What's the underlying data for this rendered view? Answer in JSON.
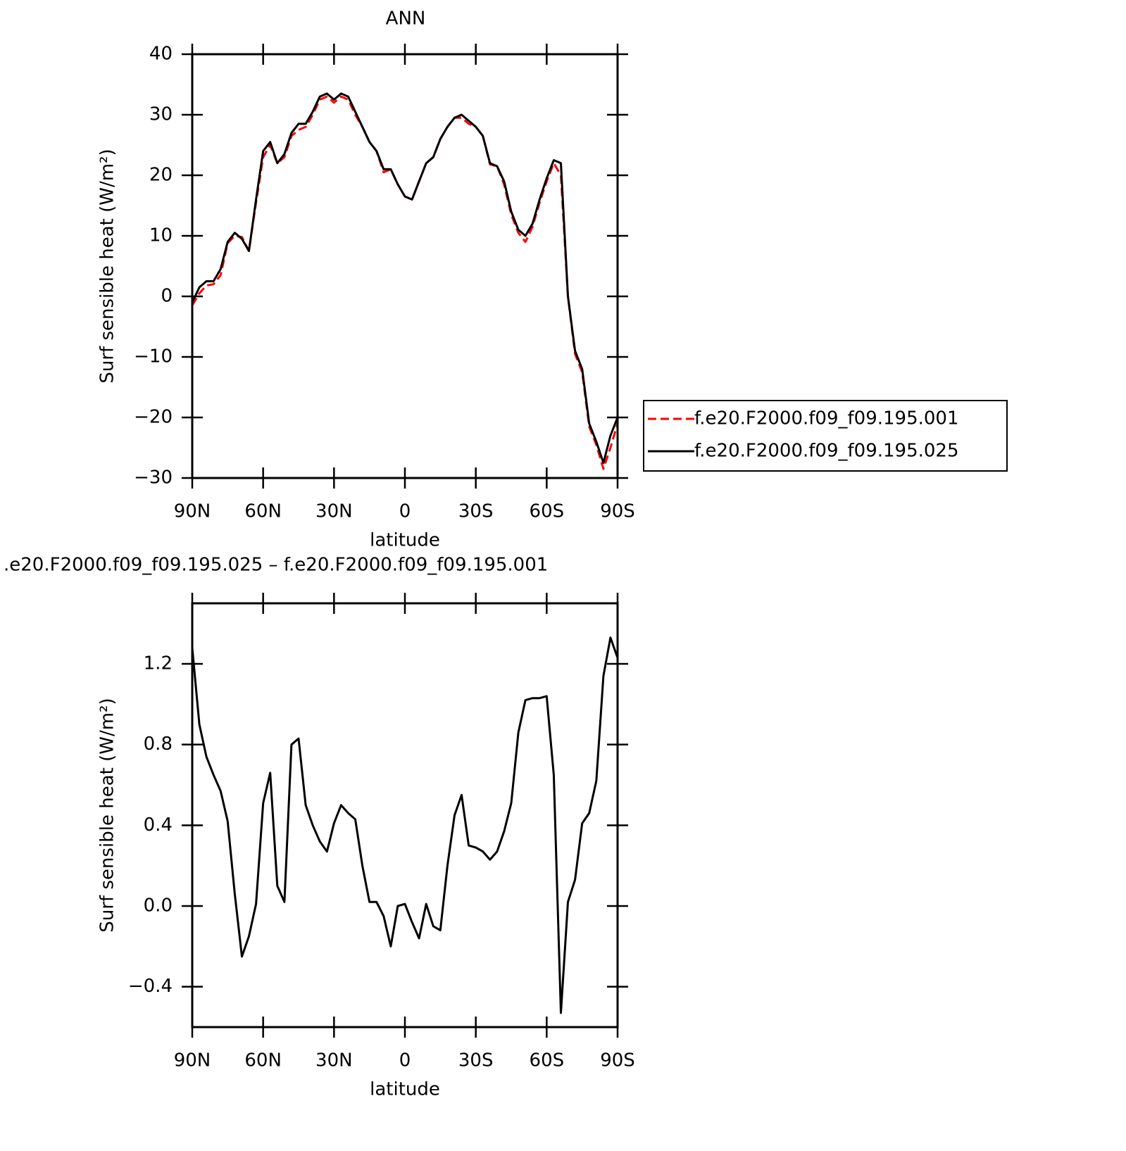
{
  "chart_data": [
    {
      "type": "line",
      "title": "ANN",
      "xlabel": "latitude",
      "ylabel": "Surf sensible heat (W/m²)",
      "x": [
        90,
        87,
        84,
        81,
        78,
        75,
        72,
        69,
        66,
        63,
        60,
        57,
        54,
        51,
        48,
        45,
        42,
        39,
        36,
        33,
        30,
        27,
        24,
        21,
        18,
        15,
        12,
        9,
        6,
        3,
        0,
        -3,
        -6,
        -9,
        -12,
        -15,
        -18,
        -21,
        -24,
        -27,
        -30,
        -33,
        -36,
        -39,
        -42,
        -45,
        -48,
        -51,
        -54,
        -57,
        -60,
        -63,
        -66,
        -69,
        -72,
        -75,
        -78,
        -81,
        -84,
        -87,
        -90
      ],
      "series": [
        {
          "name": "f.e20.F2000.f09_f09.195.001",
          "color": "#ff0000",
          "line_style": "dashed",
          "values": [
            -1.5,
            0.5,
            1.8,
            2,
            3.5,
            8.8,
            10,
            9.8,
            7.5,
            15.5,
            23,
            25,
            22,
            23,
            26.5,
            27.5,
            28,
            30,
            32.5,
            33,
            32,
            33,
            32.5,
            30,
            28,
            25.5,
            24,
            20.5,
            21,
            18.5,
            16.5,
            16,
            19,
            22,
            23,
            26,
            28,
            29.5,
            29.5,
            28.5,
            28,
            26.5,
            21.8,
            21.5,
            18.5,
            13.5,
            10.5,
            9,
            11.5,
            15.5,
            19,
            22,
            20,
            0,
            -9.5,
            -12.5,
            -21.5,
            -24.5,
            -28.5,
            -25,
            -21
          ]
        },
        {
          "name": "f.e20.F2000.f09_f09.195.025",
          "color": "#000000",
          "line_style": "solid",
          "values": [
            -1,
            1.5,
            2.5,
            2.5,
            4.5,
            9,
            10.5,
            9.5,
            7.5,
            16,
            24,
            25.5,
            22,
            23.5,
            27,
            28.5,
            28.5,
            30.5,
            33,
            33.5,
            32.5,
            33.5,
            33,
            30.5,
            28,
            25.5,
            24,
            21,
            21,
            18.5,
            16.5,
            16,
            19,
            22,
            23,
            26,
            28,
            29.5,
            30,
            29,
            28,
            26.5,
            22,
            21.5,
            19,
            14,
            11,
            10,
            12,
            16,
            19.5,
            22.5,
            22,
            0,
            -9,
            -12,
            -21,
            -24,
            -27.5,
            -23,
            -20
          ]
        }
      ],
      "xlim": [
        90,
        -90
      ],
      "xticks": [
        {
          "value": 90,
          "label": "90N"
        },
        {
          "value": 60,
          "label": "60N"
        },
        {
          "value": 30,
          "label": "30N"
        },
        0,
        {
          "value": -30,
          "label": "30S"
        },
        {
          "value": -60,
          "label": "60S"
        },
        {
          "value": -90,
          "label": "90S"
        }
      ],
      "ylim": [
        -30,
        40
      ],
      "yticks": [
        {
          "value": -30,
          "label": "−30"
        },
        {
          "value": -20,
          "label": "−20"
        },
        {
          "value": -10,
          "label": "−10"
        },
        0,
        10,
        20,
        30,
        40
      ],
      "legend": "right"
    },
    {
      "type": "line",
      "title": ".e20.F2000.f09_f09.195.025 – f.e20.F2000.f09_f09.195.001",
      "xlabel": "latitude",
      "ylabel": "Surf sensible heat (W/m²)",
      "x": [
        90,
        87,
        84,
        81,
        78,
        75,
        72,
        69,
        66,
        63,
        60,
        57,
        54,
        51,
        48,
        45,
        42,
        39,
        36,
        33,
        30,
        27,
        24,
        21,
        18,
        15,
        12,
        9,
        6,
        3,
        0,
        -3,
        -6,
        -9,
        -12,
        -15,
        -18,
        -21,
        -24,
        -27,
        -30,
        -33,
        -36,
        -39,
        -42,
        -45,
        -48,
        -51,
        -54,
        -57,
        -60,
        -63,
        -66,
        -69,
        -72,
        -75,
        -78,
        -81,
        -84,
        -87,
        -90
      ],
      "color": "#000000",
      "values": [
        1.28,
        0.9,
        0.74,
        0.65,
        0.57,
        0.42,
        0.06,
        -0.25,
        -0.15,
        0.01,
        0.51,
        0.66,
        0.1,
        0.02,
        0.8,
        0.83,
        0.5,
        0.4,
        0.32,
        0.27,
        0.41,
        0.5,
        0.46,
        0.43,
        0.2,
        0.02,
        0.02,
        -0.05,
        -0.2,
        0,
        0.01,
        -0.08,
        -0.16,
        0.01,
        -0.1,
        -0.12,
        0.2,
        0.45,
        0.55,
        0.3,
        0.29,
        0.27,
        0.23,
        0.27,
        0.37,
        0.51,
        0.86,
        1.02,
        1.03,
        1.03,
        1.04,
        0.65,
        -0.53,
        0.02,
        0.13,
        0.41,
        0.46,
        0.62,
        1.14,
        1.33,
        1.23
      ],
      "xlim": [
        90,
        -90
      ],
      "xticks": [
        {
          "value": 90,
          "label": "90N"
        },
        {
          "value": 60,
          "label": "60N"
        },
        {
          "value": 30,
          "label": "30N"
        },
        0,
        {
          "value": -30,
          "label": "30S"
        },
        {
          "value": -60,
          "label": "60S"
        },
        {
          "value": -90,
          "label": "90S"
        }
      ],
      "ylim": [
        -0.6,
        1.5
      ],
      "yticks": [
        {
          "value": -0.4,
          "label": "−0.4"
        },
        {
          "value": 0,
          "label": "0.0"
        },
        0.4,
        0.8,
        1.2
      ]
    }
  ]
}
